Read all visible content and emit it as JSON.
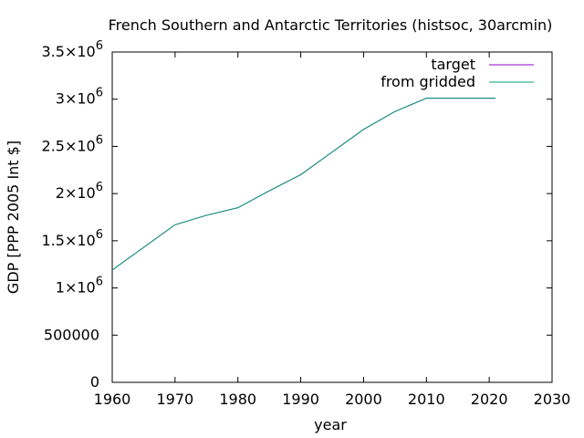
{
  "chart_data": {
    "type": "line",
    "title": "French Southern and Antarctic Territories (histsoc, 30arcmin)",
    "xlabel": "year",
    "ylabel": "GDP [PPP 2005 Int $]",
    "xlim": [
      1960,
      2030
    ],
    "ylim": [
      0,
      3500000
    ],
    "grid": false,
    "legend_position": "top-right",
    "x_ticks": [
      {
        "value": 1960,
        "label": "1960"
      },
      {
        "value": 1970,
        "label": "1970"
      },
      {
        "value": 1980,
        "label": "1980"
      },
      {
        "value": 1990,
        "label": "1990"
      },
      {
        "value": 2000,
        "label": "2000"
      },
      {
        "value": 2010,
        "label": "2010"
      },
      {
        "value": 2020,
        "label": "2020"
      },
      {
        "value": 2030,
        "label": "2030"
      }
    ],
    "y_ticks": [
      {
        "value": 0,
        "mantissa": "0",
        "exponent": ""
      },
      {
        "value": 500000,
        "mantissa": "500000",
        "exponent": ""
      },
      {
        "value": 1000000,
        "mantissa": "1×10",
        "exponent": "6"
      },
      {
        "value": 1500000,
        "mantissa": "1.5×10",
        "exponent": "6"
      },
      {
        "value": 2000000,
        "mantissa": "2×10",
        "exponent": "6"
      },
      {
        "value": 2500000,
        "mantissa": "2.5×10",
        "exponent": "6"
      },
      {
        "value": 3000000,
        "mantissa": "3×10",
        "exponent": "6"
      },
      {
        "value": 3500000,
        "mantissa": "3.5×10",
        "exponent": "6"
      }
    ],
    "series": [
      {
        "name": "target",
        "color": "#9400d3",
        "x": [
          1960,
          1965,
          1970,
          1975,
          1980,
          1985,
          1990,
          1995,
          2000,
          2005,
          2010,
          2015,
          2020,
          2021
        ],
        "y": [
          1190000,
          1430000,
          1670000,
          1770000,
          1850000,
          2030000,
          2200000,
          2440000,
          2680000,
          2870000,
          3010000,
          3010000,
          3010000,
          3010000
        ]
      },
      {
        "name": "from gridded",
        "color": "#009e73",
        "x": [
          1960,
          1965,
          1970,
          1975,
          1980,
          1985,
          1990,
          1995,
          2000,
          2005,
          2010,
          2015,
          2020,
          2021
        ],
        "y": [
          1190000,
          1430000,
          1670000,
          1770000,
          1850000,
          2030000,
          2200000,
          2440000,
          2680000,
          2870000,
          3010000,
          3010000,
          3010000,
          3010000
        ]
      }
    ]
  }
}
